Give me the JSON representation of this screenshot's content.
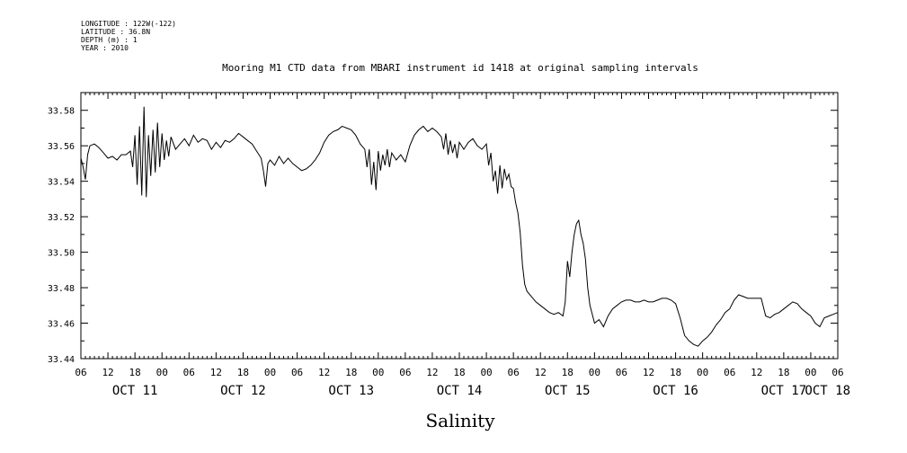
{
  "meta": {
    "longitude": "LONGITUDE : 122W(-122)",
    "latitude": "LATITUDE : 36.8N",
    "depth": "DEPTH (m) : 1",
    "year": "YEAR : 2010"
  },
  "chart_data": {
    "type": "line",
    "title": "Mooring M1 CTD data from MBARI instrument id 1418 at original sampling intervals",
    "xlabel": "Salinity",
    "ylabel": "",
    "grid": false,
    "xlim": [
      0,
      168
    ],
    "ylim": [
      33.44,
      33.59
    ],
    "yticks": [
      33.44,
      33.46,
      33.48,
      33.5,
      33.52,
      33.54,
      33.56,
      33.58
    ],
    "ytick_labels": [
      "33.44",
      "33.46",
      "33.48",
      "33.50",
      "33.52",
      "33.54",
      "33.56",
      "33.58"
    ],
    "x_hour_labels": [
      "06",
      "12",
      "18",
      "00",
      "06",
      "12",
      "18",
      "00",
      "06",
      "12",
      "18",
      "00",
      "06",
      "12",
      "18",
      "00",
      "06",
      "12",
      "18",
      "00",
      "06",
      "12",
      "18",
      "00",
      "06",
      "12",
      "18",
      "00",
      "06"
    ],
    "x_day_labels": [
      {
        "label": "OCT 11",
        "at": 12
      },
      {
        "label": "OCT 12",
        "at": 36
      },
      {
        "label": "OCT 13",
        "at": 60
      },
      {
        "label": "OCT 14",
        "at": 84
      },
      {
        "label": "OCT 15",
        "at": 108
      },
      {
        "label": "OCT 16",
        "at": 132
      },
      {
        "label": "OCT 17",
        "at": 156
      },
      {
        "label": "OCT 18",
        "at": 168
      }
    ],
    "x_units": "hours since Oct 11 06:00",
    "series": [
      {
        "name": "",
        "points": [
          [
            0,
            33.553
          ],
          [
            0.5,
            33.548
          ],
          [
            1,
            33.541
          ],
          [
            1.5,
            33.555
          ],
          [
            2,
            33.56
          ],
          [
            3,
            33.561
          ],
          [
            4,
            33.559
          ],
          [
            5,
            33.556
          ],
          [
            6,
            33.553
          ],
          [
            7,
            33.554
          ],
          [
            8,
            33.552
          ],
          [
            9,
            33.555
          ],
          [
            10,
            33.555
          ],
          [
            11,
            33.557
          ],
          [
            11.5,
            33.548
          ],
          [
            12,
            33.566
          ],
          [
            12.5,
            33.538
          ],
          [
            13,
            33.571
          ],
          [
            13.5,
            33.532
          ],
          [
            14,
            33.582
          ],
          [
            14.5,
            33.531
          ],
          [
            15,
            33.566
          ],
          [
            15.5,
            33.543
          ],
          [
            16,
            33.569
          ],
          [
            16.5,
            33.545
          ],
          [
            17,
            33.573
          ],
          [
            17.5,
            33.548
          ],
          [
            18,
            33.567
          ],
          [
            18.5,
            33.552
          ],
          [
            19,
            33.563
          ],
          [
            19.5,
            33.554
          ],
          [
            20,
            33.565
          ],
          [
            21,
            33.558
          ],
          [
            22,
            33.561
          ],
          [
            23,
            33.564
          ],
          [
            24,
            33.56
          ],
          [
            25,
            33.566
          ],
          [
            26,
            33.562
          ],
          [
            27,
            33.564
          ],
          [
            28,
            33.563
          ],
          [
            29,
            33.558
          ],
          [
            30,
            33.562
          ],
          [
            31,
            33.559
          ],
          [
            32,
            33.563
          ],
          [
            33,
            33.562
          ],
          [
            34,
            33.564
          ],
          [
            35,
            33.567
          ],
          [
            36,
            33.565
          ],
          [
            37,
            33.563
          ],
          [
            38,
            33.561
          ],
          [
            39,
            33.557
          ],
          [
            40,
            33.553
          ],
          [
            40.5,
            33.546
          ],
          [
            41,
            33.537
          ],
          [
            41.5,
            33.55
          ],
          [
            42,
            33.552
          ],
          [
            43,
            33.549
          ],
          [
            44,
            33.554
          ],
          [
            45,
            33.55
          ],
          [
            46,
            33.553
          ],
          [
            47,
            33.55
          ],
          [
            48,
            33.548
          ],
          [
            49,
            33.546
          ],
          [
            50,
            33.547
          ],
          [
            51,
            33.549
          ],
          [
            52,
            33.552
          ],
          [
            53,
            33.556
          ],
          [
            54,
            33.562
          ],
          [
            55,
            33.566
          ],
          [
            56,
            33.568
          ],
          [
            57,
            33.569
          ],
          [
            58,
            33.571
          ],
          [
            59,
            33.57
          ],
          [
            60,
            33.569
          ],
          [
            61,
            33.566
          ],
          [
            62,
            33.561
          ],
          [
            63,
            33.558
          ],
          [
            63.5,
            33.548
          ],
          [
            64,
            33.558
          ],
          [
            64.5,
            33.538
          ],
          [
            65,
            33.551
          ],
          [
            65.5,
            33.535
          ],
          [
            66,
            33.557
          ],
          [
            66.5,
            33.546
          ],
          [
            67,
            33.555
          ],
          [
            67.5,
            33.549
          ],
          [
            68,
            33.558
          ],
          [
            68.5,
            33.548
          ],
          [
            69,
            33.556
          ],
          [
            70,
            33.552
          ],
          [
            71,
            33.555
          ],
          [
            72,
            33.551
          ],
          [
            73,
            33.56
          ],
          [
            74,
            33.566
          ],
          [
            75,
            33.569
          ],
          [
            76,
            33.571
          ],
          [
            77,
            33.568
          ],
          [
            78,
            33.57
          ],
          [
            79,
            33.568
          ],
          [
            80,
            33.565
          ],
          [
            80.5,
            33.558
          ],
          [
            81,
            33.567
          ],
          [
            81.5,
            33.555
          ],
          [
            82,
            33.563
          ],
          [
            82.5,
            33.556
          ],
          [
            83,
            33.561
          ],
          [
            83.5,
            33.553
          ],
          [
            84,
            33.562
          ],
          [
            85,
            33.558
          ],
          [
            86,
            33.562
          ],
          [
            87,
            33.564
          ],
          [
            88,
            33.56
          ],
          [
            89,
            33.558
          ],
          [
            90,
            33.561
          ],
          [
            90.5,
            33.549
          ],
          [
            91,
            33.556
          ],
          [
            91.5,
            33.54
          ],
          [
            92,
            33.546
          ],
          [
            92.5,
            33.533
          ],
          [
            93,
            33.549
          ],
          [
            93.5,
            33.536
          ],
          [
            94,
            33.547
          ],
          [
            94.5,
            33.541
          ],
          [
            95,
            33.544
          ],
          [
            95.5,
            33.537
          ],
          [
            96,
            33.536
          ],
          [
            96.5,
            33.528
          ],
          [
            97,
            33.522
          ],
          [
            97.5,
            33.511
          ],
          [
            98,
            33.493
          ],
          [
            98.5,
            33.482
          ],
          [
            99,
            33.478
          ],
          [
            100,
            33.475
          ],
          [
            101,
            33.472
          ],
          [
            102,
            33.47
          ],
          [
            103,
            33.468
          ],
          [
            104,
            33.466
          ],
          [
            105,
            33.465
          ],
          [
            106,
            33.466
          ],
          [
            107,
            33.464
          ],
          [
            107.5,
            33.472
          ],
          [
            108,
            33.495
          ],
          [
            108.5,
            33.486
          ],
          [
            109,
            33.5
          ],
          [
            109.5,
            33.51
          ],
          [
            110,
            33.516
          ],
          [
            110.5,
            33.518
          ],
          [
            111,
            33.51
          ],
          [
            111.5,
            33.505
          ],
          [
            112,
            33.496
          ],
          [
            112.5,
            33.48
          ],
          [
            113,
            33.47
          ],
          [
            113.5,
            33.465
          ],
          [
            114,
            33.46
          ],
          [
            115,
            33.462
          ],
          [
            116,
            33.458
          ],
          [
            117,
            33.464
          ],
          [
            118,
            33.468
          ],
          [
            119,
            33.47
          ],
          [
            120,
            33.472
          ],
          [
            121,
            33.473
          ],
          [
            122,
            33.473
          ],
          [
            123,
            33.472
          ],
          [
            124,
            33.472
          ],
          [
            125,
            33.473
          ],
          [
            126,
            33.472
          ],
          [
            127,
            33.472
          ],
          [
            128,
            33.473
          ],
          [
            129,
            33.474
          ],
          [
            130,
            33.474
          ],
          [
            131,
            33.473
          ],
          [
            132,
            33.471
          ],
          [
            133,
            33.463
          ],
          [
            134,
            33.453
          ],
          [
            135,
            33.45
          ],
          [
            136,
            33.448
          ],
          [
            137,
            33.447
          ],
          [
            138,
            33.45
          ],
          [
            139,
            33.452
          ],
          [
            140,
            33.455
          ],
          [
            141,
            33.459
          ],
          [
            142,
            33.462
          ],
          [
            143,
            33.466
          ],
          [
            144,
            33.468
          ],
          [
            145,
            33.473
          ],
          [
            146,
            33.476
          ],
          [
            147,
            33.475
          ],
          [
            148,
            33.474
          ],
          [
            149,
            33.474
          ],
          [
            150,
            33.474
          ],
          [
            151,
            33.474
          ],
          [
            152,
            33.464
          ],
          [
            153,
            33.463
          ],
          [
            154,
            33.465
          ],
          [
            155,
            33.466
          ],
          [
            156,
            33.468
          ],
          [
            157,
            33.47
          ],
          [
            158,
            33.472
          ],
          [
            159,
            33.471
          ],
          [
            160,
            33.468
          ],
          [
            161,
            33.466
          ],
          [
            162,
            33.464
          ],
          [
            163,
            33.46
          ],
          [
            164,
            33.458
          ],
          [
            165,
            33.463
          ],
          [
            166,
            33.464
          ],
          [
            167,
            33.465
          ],
          [
            168,
            33.466
          ]
        ]
      }
    ]
  }
}
